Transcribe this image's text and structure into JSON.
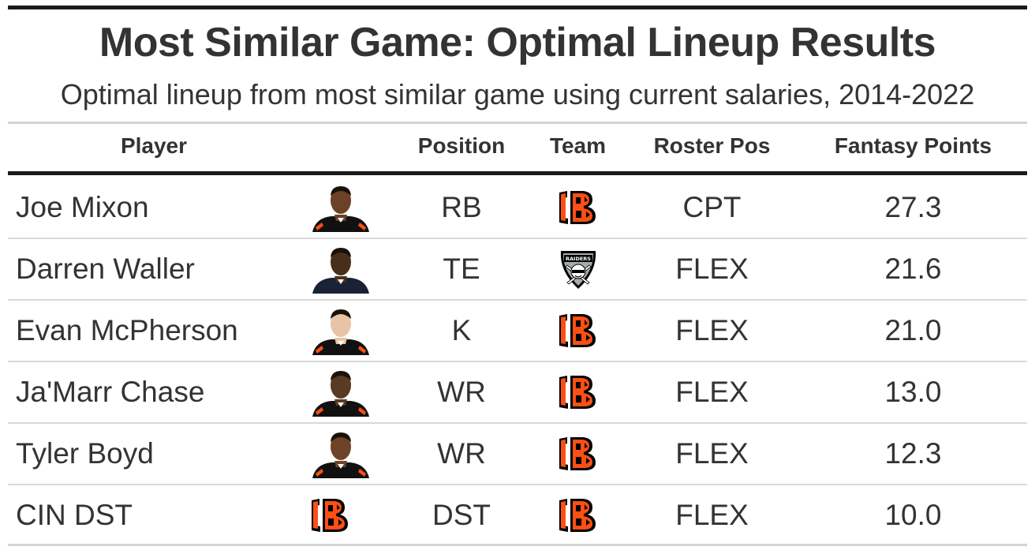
{
  "title": "Most Similar Game: Optimal Lineup Results",
  "subtitle": "Optimal lineup from most similar game using current salaries, 2014-2022",
  "columns": {
    "player": "Player",
    "position": "Position",
    "team": "Team",
    "roster_pos": "Roster Pos",
    "fantasy_points": "Fantasy Points"
  },
  "rows": [
    {
      "player": "Joe Mixon",
      "position": "RB",
      "team": "cincinnati-bengals-logo",
      "roster_pos": "CPT",
      "fantasy_points": "27.3",
      "image": "player-headshot"
    },
    {
      "player": "Darren Waller",
      "position": "TE",
      "team": "las-vegas-raiders-logo",
      "roster_pos": "FLEX",
      "fantasy_points": "21.6",
      "image": "player-headshot"
    },
    {
      "player": "Evan McPherson",
      "position": "K",
      "team": "cincinnati-bengals-logo",
      "roster_pos": "FLEX",
      "fantasy_points": "21.0",
      "image": "player-headshot"
    },
    {
      "player": "Ja'Marr Chase",
      "position": "WR",
      "team": "cincinnati-bengals-logo",
      "roster_pos": "FLEX",
      "fantasy_points": "13.0",
      "image": "player-headshot"
    },
    {
      "player": "Tyler Boyd",
      "position": "WR",
      "team": "cincinnati-bengals-logo",
      "roster_pos": "FLEX",
      "fantasy_points": "12.3",
      "image": "player-headshot"
    },
    {
      "player": "CIN DST",
      "position": "DST",
      "team": "cincinnati-bengals-logo",
      "roster_pos": "FLEX",
      "fantasy_points": "10.0",
      "image": "cincinnati-bengals-logo"
    }
  ],
  "colors": {
    "bengals_orange": "#FB4F14",
    "bengals_black": "#000000",
    "raiders_silver": "#A5ACAF",
    "text": "#333333"
  }
}
